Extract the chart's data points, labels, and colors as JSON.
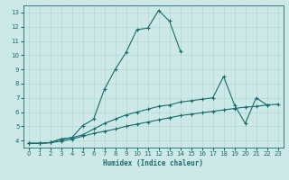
{
  "xlabel": "Humidex (Indice chaleur)",
  "bg_color": "#cce9e8",
  "grid_color": "#b0d8d6",
  "line_color": "#1a6b6b",
  "xlim": [
    -0.5,
    23.5
  ],
  "ylim": [
    3.5,
    13.5
  ],
  "xticks": [
    0,
    1,
    2,
    3,
    4,
    5,
    6,
    7,
    8,
    9,
    10,
    11,
    12,
    13,
    14,
    15,
    16,
    17,
    18,
    19,
    20,
    21,
    22,
    23
  ],
  "yticks": [
    4,
    5,
    6,
    7,
    8,
    9,
    10,
    11,
    12,
    13
  ],
  "line1_x": [
    0,
    1,
    2,
    3,
    4,
    5,
    6,
    7,
    8,
    9,
    10,
    11,
    12,
    13,
    14,
    15
  ],
  "line1_y": [
    3.8,
    3.8,
    3.85,
    4.1,
    4.2,
    5.05,
    5.5,
    7.6,
    9.0,
    10.2,
    11.8,
    11.9,
    13.15,
    12.4,
    10.3,
    null
  ],
  "line2_x": [
    0,
    1,
    2,
    3,
    4,
    5,
    6,
    7,
    8,
    9,
    10,
    11,
    12,
    13,
    14,
    15,
    16,
    17,
    18,
    19,
    20,
    21,
    22,
    23
  ],
  "line2_y": [
    3.8,
    3.8,
    3.85,
    4.1,
    4.2,
    4.4,
    4.8,
    5.2,
    5.5,
    5.8,
    6.0,
    6.2,
    6.4,
    6.5,
    6.7,
    6.8,
    6.9,
    7.0,
    8.5,
    6.5,
    5.2,
    7.0,
    6.5,
    null
  ],
  "line3_x": [
    0,
    1,
    2,
    3,
    4,
    5,
    6,
    7,
    8,
    9,
    10,
    11,
    12,
    13,
    14,
    15,
    16,
    17,
    18,
    19,
    20,
    21,
    22,
    23
  ],
  "line3_y": [
    3.8,
    3.8,
    3.85,
    3.95,
    4.1,
    4.3,
    4.5,
    4.65,
    4.8,
    5.0,
    5.15,
    5.3,
    5.45,
    5.6,
    5.75,
    5.85,
    5.95,
    6.05,
    6.15,
    6.25,
    6.35,
    6.4,
    6.5,
    6.55
  ]
}
